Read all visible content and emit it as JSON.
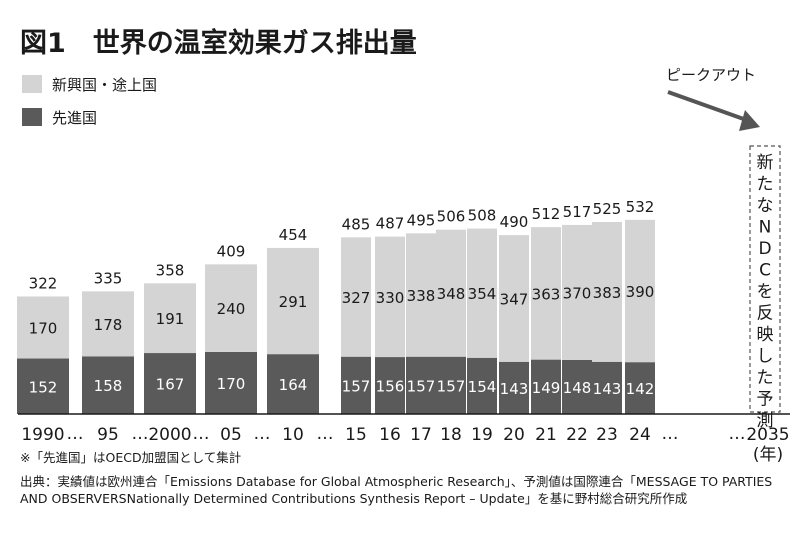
{
  "chart_data": {
    "type": "bar",
    "stacked": true,
    "title": "図1　世界の温室効果ガス排出量",
    "categories": [
      "1990",
      "95",
      "2000",
      "05",
      "10",
      "15",
      "16",
      "17",
      "18",
      "19",
      "20",
      "21",
      "22",
      "23",
      "24"
    ],
    "axis_extra_tick": "2035",
    "axis_unit": "(年)",
    "ellipsis": "…",
    "series": [
      {
        "name": "先進国",
        "values": [
          152,
          158,
          167,
          170,
          164,
          157,
          156,
          157,
          157,
          154,
          143,
          149,
          148,
          143,
          142
        ],
        "color": "#5a5a5a"
      },
      {
        "name": "新興国・途上国",
        "values": [
          170,
          178,
          191,
          240,
          291,
          327,
          330,
          338,
          348,
          354,
          347,
          363,
          370,
          383,
          390
        ],
        "color": "#d4d4d4"
      }
    ],
    "totals": [
      322,
      335,
      358,
      409,
      454,
      485,
      487,
      495,
      506,
      508,
      490,
      512,
      517,
      525,
      532
    ],
    "legend": {
      "position": "top-left",
      "items": [
        "新興国・途上国",
        "先進国"
      ]
    },
    "annotations": {
      "peak_out": "ピークアウト",
      "future_box": "新たなNDCを反映した予測"
    },
    "xlabel": "",
    "ylabel": "",
    "ylim": [
      0,
      560
    ]
  },
  "notes": {
    "note1": "※「先進国」はOECD加盟国として集計",
    "source_line1": "出典：実績値は欧州連合「Emissions Database for Global Atmospheric Research」、予測値は国際連合「MESSAGE TO PARTIES",
    "source_line2": "AND OBSERVERSNationally Determined Contributions Synthesis Report – Update」を基に野村総合研究所作成"
  }
}
